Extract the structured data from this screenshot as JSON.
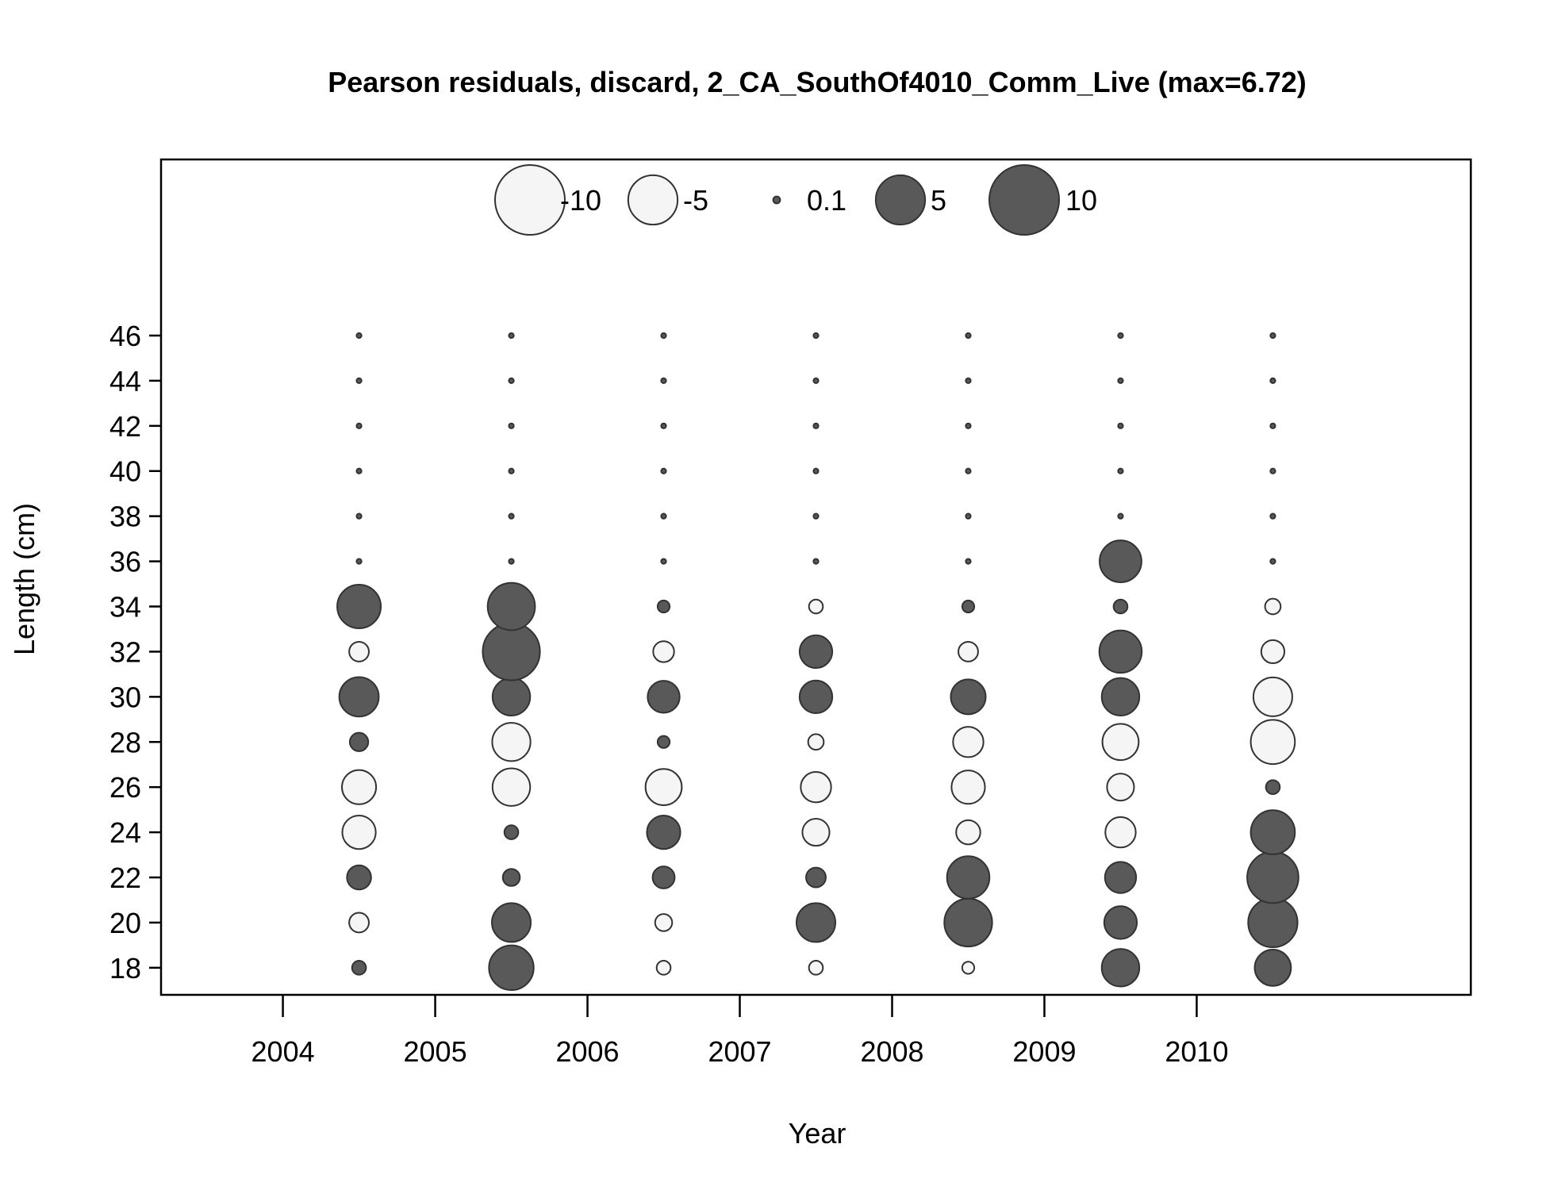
{
  "chart_data": {
    "type": "scatter",
    "subtype": "bubble",
    "title": "Pearson residuals, discard, 2_CA_SouthOf4010_Comm_Live (max=6.72)",
    "xlabel": "Year",
    "ylabel": "Length (cm)",
    "x_ticks": [
      2004,
      2005,
      2006,
      2007,
      2008,
      2009,
      2010
    ],
    "y_ticks": [
      18,
      20,
      22,
      24,
      26,
      28,
      30,
      32,
      34,
      36,
      38,
      40,
      42,
      44,
      46
    ],
    "xlim": [
      2003.2,
      2011.8
    ],
    "ylim": [
      16.8,
      53.8
    ],
    "grid": false,
    "legend": {
      "placement": "top-center",
      "entries": [
        {
          "label": "-10",
          "value": -10
        },
        {
          "label": "-5",
          "value": -5
        },
        {
          "label": "0.1",
          "value": 0.1
        },
        {
          "label": "5",
          "value": 5
        },
        {
          "label": "10",
          "value": 10
        }
      ]
    },
    "colors": {
      "positive_fill": "#595959",
      "negative_fill": "#f5f5f5",
      "stroke": "#333333"
    },
    "lengths": [
      18,
      20,
      22,
      24,
      26,
      28,
      30,
      32,
      34,
      36,
      38,
      40,
      42,
      44,
      46
    ],
    "series": [
      {
        "year": 2004.5,
        "values": [
          0.4,
          -0.8,
          1.2,
          -2.3,
          -2.4,
          0.7,
          3.2,
          -0.8,
          3.9,
          0.05,
          0.05,
          0.05,
          0.05,
          0.05,
          0.05
        ]
      },
      {
        "year": 2005.5,
        "values": [
          4.1,
          3.1,
          0.6,
          0.4,
          -2.9,
          -3.0,
          2.9,
          6.72,
          4.6,
          0.05,
          0.05,
          0.05,
          0.05,
          0.05,
          0.05
        ]
      },
      {
        "year": 2006.5,
        "values": [
          -0.4,
          -0.6,
          1.0,
          2.3,
          -2.7,
          0.3,
          2.1,
          -0.9,
          0.3,
          0.05,
          0.05,
          0.05,
          0.05,
          0.05,
          0.05
        ]
      },
      {
        "year": 2007.5,
        "values": [
          -0.4,
          3.1,
          0.8,
          -1.5,
          -1.9,
          -0.5,
          2.2,
          2.2,
          -0.4,
          0.05,
          0.05,
          0.05,
          0.05,
          0.05,
          0.05
        ]
      },
      {
        "year": 2008.5,
        "values": [
          -0.3,
          4.7,
          3.7,
          -1.2,
          -2.3,
          -1.9,
          2.5,
          -0.8,
          0.3,
          0.05,
          0.05,
          0.05,
          0.05,
          0.05,
          0.05
        ]
      },
      {
        "year": 2009.5,
        "values": [
          2.9,
          2.2,
          2.0,
          -1.9,
          -1.5,
          -2.7,
          2.9,
          3.7,
          0.4,
          3.6,
          0.05,
          0.05,
          0.05,
          0.05,
          0.05
        ]
      },
      {
        "year": 2010.5,
        "values": [
          2.7,
          5.0,
          5.4,
          4.0,
          0.4,
          -4.0,
          -3.1,
          -1.1,
          -0.5,
          0.05,
          0.05,
          0.05,
          0.05,
          0.05,
          0.05
        ]
      }
    ]
  }
}
